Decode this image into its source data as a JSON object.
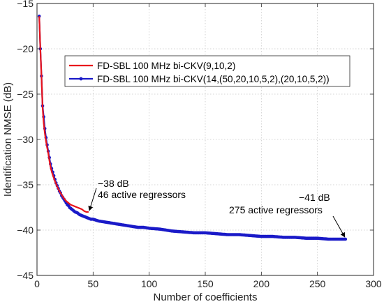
{
  "chart_data": {
    "type": "line",
    "xlabel": "Number of coefficients",
    "ylabel": "Identification NMSE (dB)",
    "xlim": [
      0,
      300
    ],
    "ylim": [
      -45,
      -15
    ],
    "xticks": [
      0,
      50,
      100,
      150,
      200,
      250,
      300
    ],
    "yticks": [
      -45,
      -40,
      -35,
      -30,
      -25,
      -20,
      -15
    ],
    "grid": true,
    "legend_position": "top",
    "series": [
      {
        "name": "FD-SBL 100 MHz bi-CKV(9,10,2)",
        "color": "#e8141c",
        "marker": "none",
        "x": [
          2,
          3,
          4,
          5,
          6,
          7,
          8,
          9,
          10,
          11,
          12,
          13,
          14,
          16,
          18,
          20,
          22,
          24,
          26,
          28,
          30,
          32,
          34,
          36,
          38,
          40,
          42,
          44,
          46
        ],
        "y": [
          -16.4,
          -20,
          -23,
          -26.5,
          -28.2,
          -29.3,
          -30.2,
          -30.9,
          -31.5,
          -32.3,
          -33,
          -33.5,
          -33.9,
          -34.6,
          -35.2,
          -35.7,
          -36.1,
          -36.5,
          -36.8,
          -37.0,
          -37.2,
          -37.3,
          -37.4,
          -37.5,
          -37.6,
          -37.7,
          -37.9,
          -38.0,
          -38.0
        ]
      },
      {
        "name": "FD-SBL 100 MHz bi-CKV(14,(50,20,10,5,2),(20,10,5,2))",
        "color": "#1a1ac8",
        "marker": "dot",
        "x": [
          2,
          3,
          4,
          5,
          6,
          7,
          8,
          9,
          10,
          11,
          12,
          13,
          14,
          15,
          16,
          17,
          18,
          19,
          20,
          21,
          22,
          23,
          24,
          25,
          26,
          27,
          28,
          29,
          30,
          32,
          34,
          36,
          38,
          40,
          42,
          44,
          46,
          48,
          50,
          55,
          60,
          65,
          70,
          75,
          80,
          85,
          90,
          95,
          100,
          110,
          120,
          130,
          140,
          150,
          160,
          170,
          180,
          190,
          200,
          210,
          220,
          230,
          240,
          250,
          260,
          270,
          275
        ],
        "y": [
          -16.4,
          -20,
          -23,
          -26.3,
          -27.5,
          -28.8,
          -29.8,
          -30.6,
          -31.3,
          -32,
          -32.7,
          -33.2,
          -33.6,
          -34,
          -34.4,
          -34.8,
          -35.1,
          -35.4,
          -35.7,
          -35.9,
          -36.2,
          -36.4,
          -36.6,
          -36.8,
          -37,
          -37.2,
          -37.3,
          -37.5,
          -37.6,
          -37.8,
          -38,
          -38.1,
          -38.3,
          -38.4,
          -38.5,
          -38.6,
          -38.7,
          -38.8,
          -38.8,
          -39,
          -39.1,
          -39.2,
          -39.3,
          -39.4,
          -39.5,
          -39.6,
          -39.7,
          -39.7,
          -39.8,
          -39.9,
          -40.1,
          -40.2,
          -40.3,
          -40.3,
          -40.4,
          -40.5,
          -40.5,
          -40.6,
          -40.7,
          -40.7,
          -40.8,
          -40.8,
          -40.9,
          -40.9,
          -41,
          -41,
          -41
        ]
      }
    ],
    "annotations": [
      {
        "lines": [
          "−38 dB",
          "46 active regressors"
        ],
        "target": [
          46,
          -38
        ]
      },
      {
        "lines": [
          "−41 dB",
          "275 active regressors"
        ],
        "target": [
          275,
          -41
        ]
      }
    ]
  }
}
